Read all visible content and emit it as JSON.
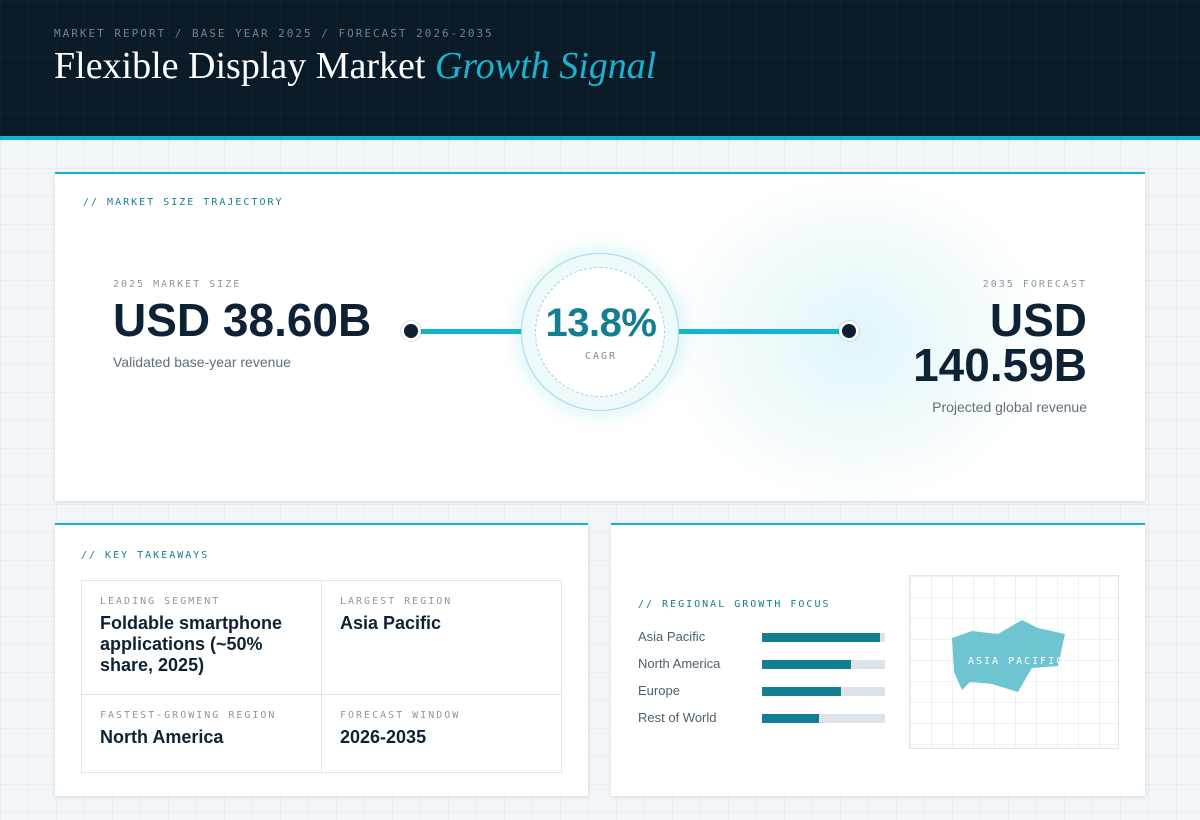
{
  "header": {
    "eyebrow": "MARKET REPORT / BASE YEAR 2025 / FORECAST 2026-2035",
    "title_main": "Flexible Display Market",
    "title_accent": "Growth Signal"
  },
  "trajectory": {
    "label": "// MARKET SIZE TRAJECTORY",
    "base": {
      "label": "2025 MARKET SIZE",
      "value": "USD 38.60B",
      "sub": "Validated base-year revenue"
    },
    "cagr": {
      "value": "13.8%",
      "label": "CAGR"
    },
    "forecast": {
      "label": "2035 FORECAST",
      "value_line1": "USD",
      "value_line2": "140.59B",
      "sub": "Projected global revenue"
    }
  },
  "takeaways": {
    "label": "// KEY TAKEAWAYS",
    "items": [
      {
        "label": "LEADING SEGMENT",
        "value": "Foldable smartphone applications (~50% share, 2025)"
      },
      {
        "label": "LARGEST REGION",
        "value": "Asia Pacific"
      },
      {
        "label": "FASTEST-GROWING REGION",
        "value": "North America"
      },
      {
        "label": "FORECAST WINDOW",
        "value": "2026-2035"
      }
    ]
  },
  "regional": {
    "label": "// REGIONAL GROWTH FOCUS",
    "map_label": "ASIA PACIFIC",
    "bars": [
      {
        "name": "Asia Pacific",
        "fraction": 0.96
      },
      {
        "name": "North America",
        "fraction": 0.72
      },
      {
        "name": "Europe",
        "fraction": 0.64
      },
      {
        "name": "Rest of World",
        "fraction": 0.46
      }
    ]
  },
  "colors": {
    "accent": "#12b5cf",
    "accent_dark": "#127e90",
    "navy": "#0a1a27",
    "bar_fill": "#127e90",
    "map_fill": "#6fc4d2"
  }
}
